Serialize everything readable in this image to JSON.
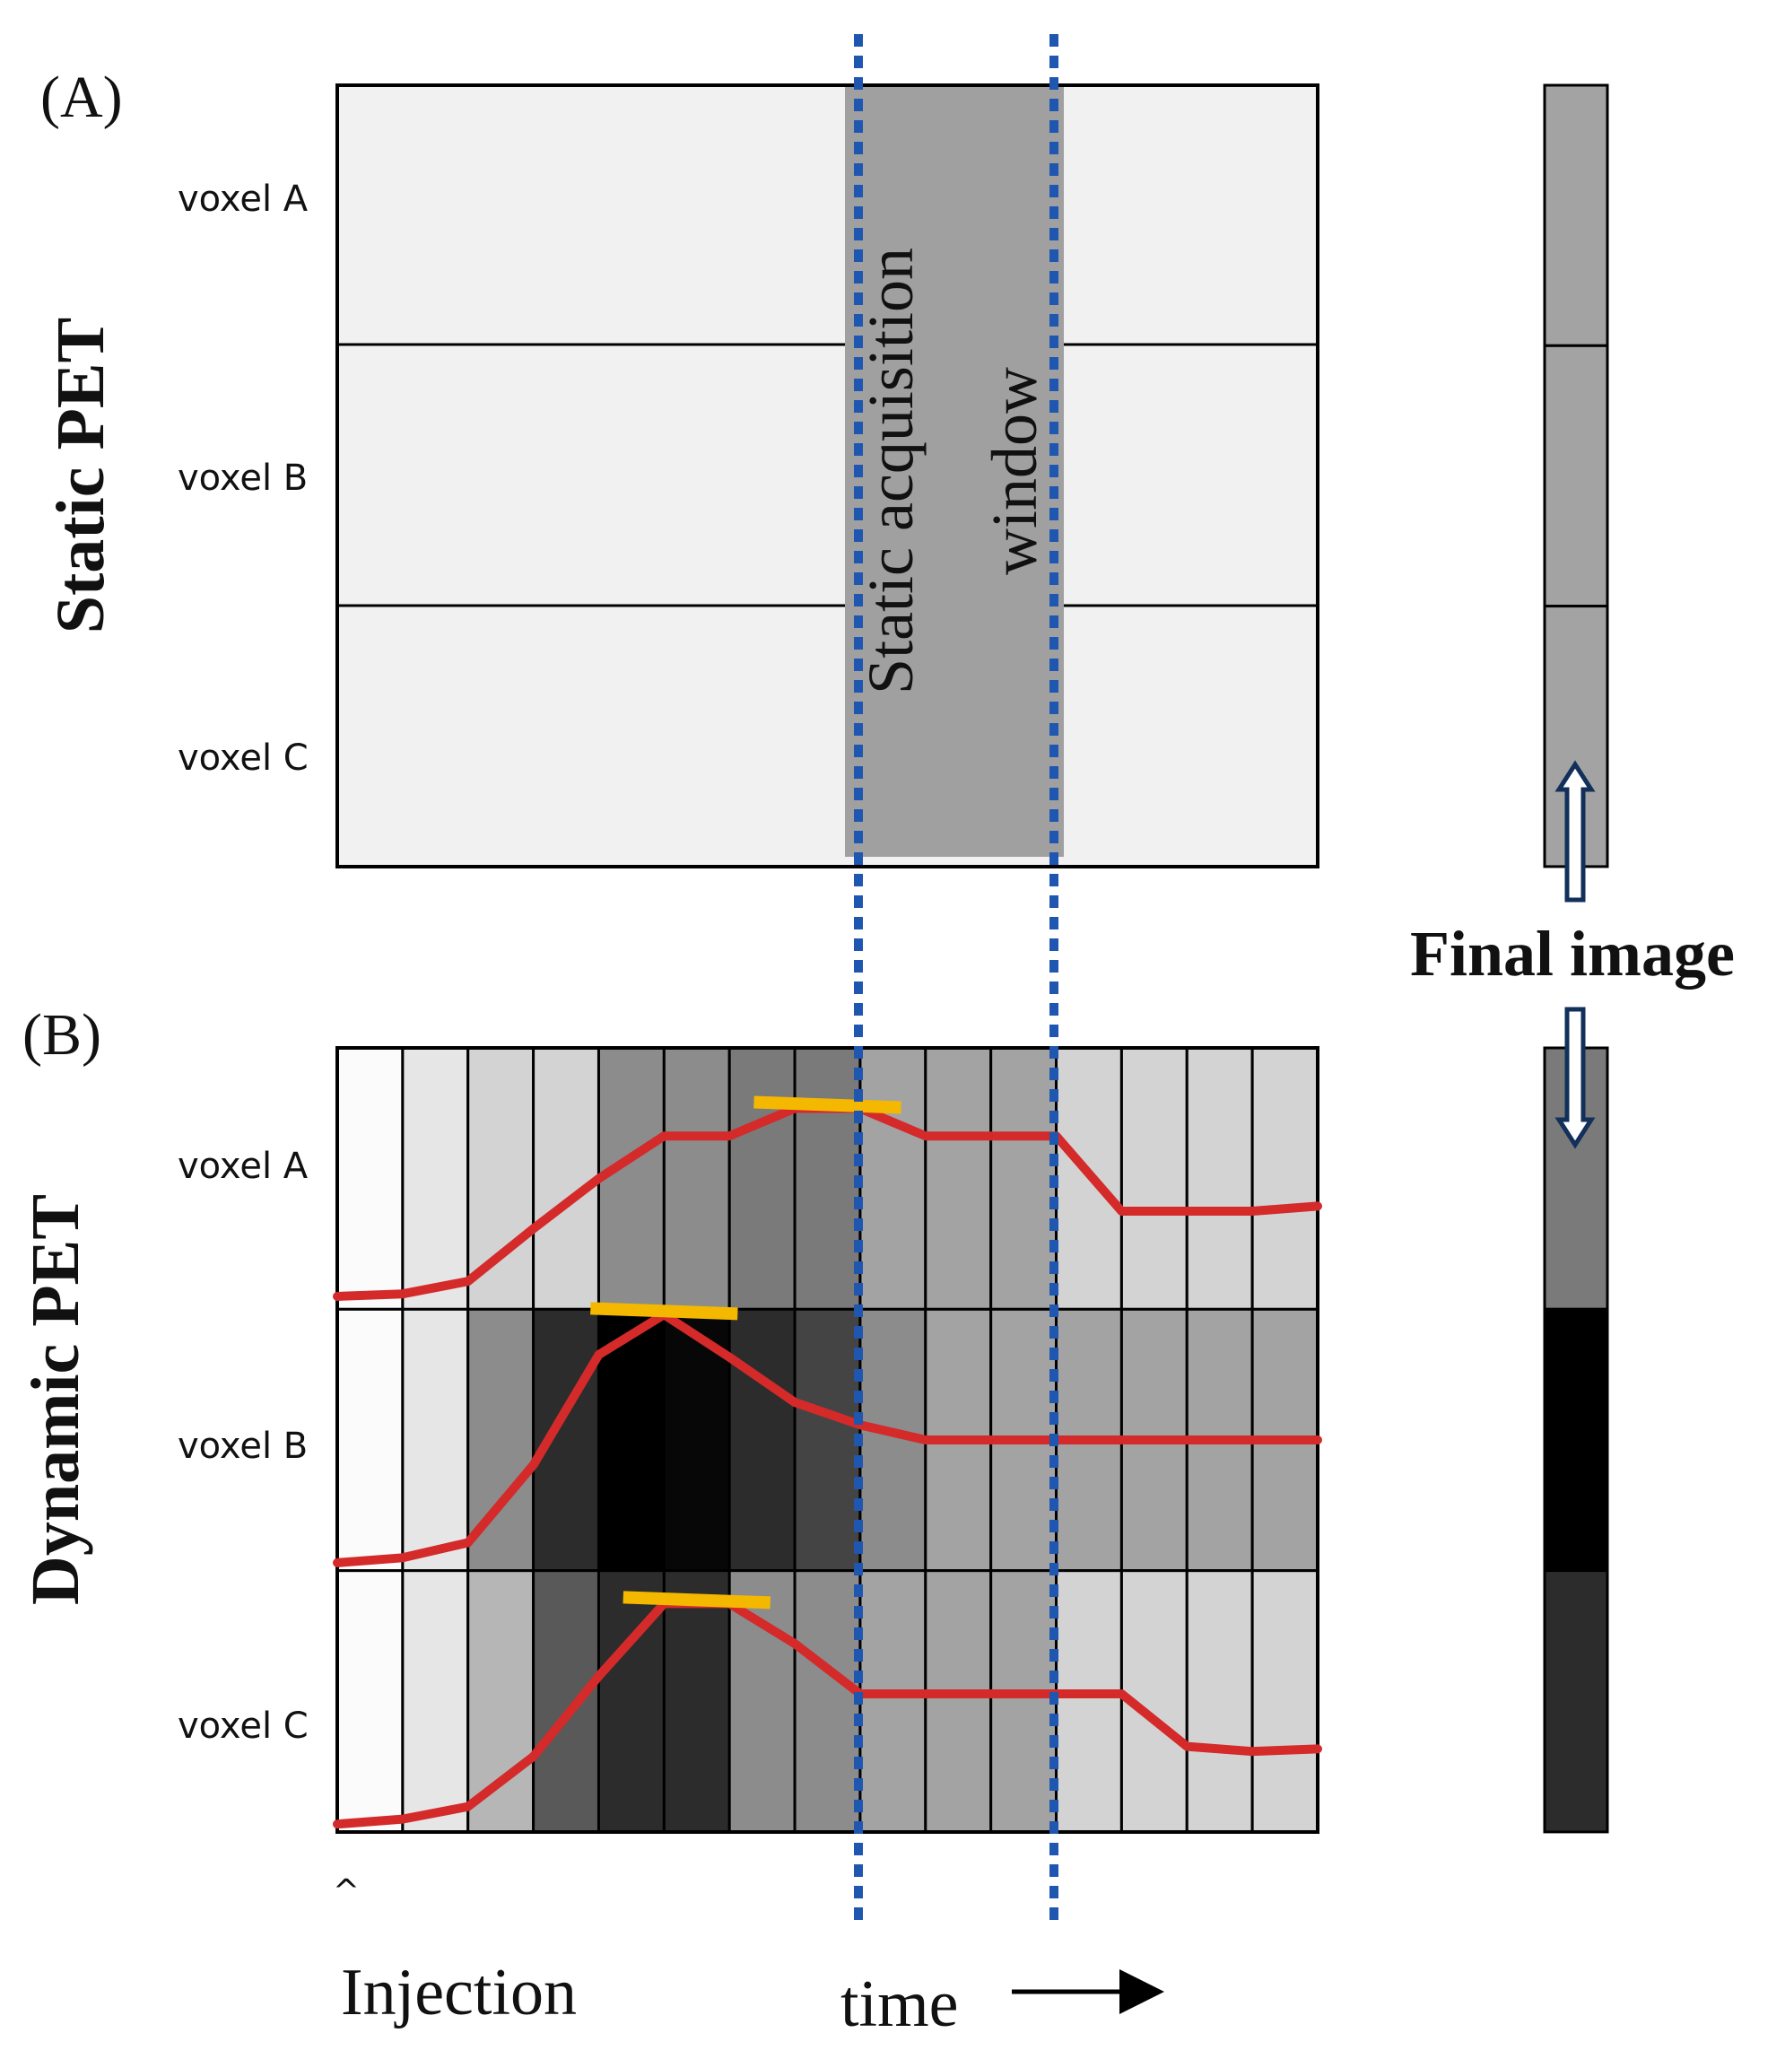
{
  "panel_a": {
    "label": "(A)",
    "side_title": "Static PET",
    "voxel_labels": [
      "voxel A",
      "voxel B",
      "voxel C"
    ],
    "window_label_line1": "Static acquisition",
    "window_label_line2": "window",
    "final_column_shades": [
      "#a3a3a3",
      "#a3a3a3",
      "#a3a3a3"
    ]
  },
  "panel_b": {
    "label": "(B)",
    "side_title": "Dynamic PET",
    "voxel_labels": [
      "voxel A",
      "voxel B",
      "voxel C"
    ],
    "frame_shades": [
      [
        "#fbfbfb",
        "#e6e6e6",
        "#d3d3d3",
        "#d3d3d3",
        "#8c8c8c",
        "#8c8c8c",
        "#7a7a7a",
        "#7a7a7a",
        "#a3a3a3",
        "#a3a3a3",
        "#a3a3a3",
        "#d3d3d3",
        "#d3d3d3",
        "#d3d3d3",
        "#d3d3d3"
      ],
      [
        "#fbfbfb",
        "#e6e6e6",
        "#8c8c8c",
        "#2c2c2c",
        "#000000",
        "#070707",
        "#2c2c2c",
        "#444444",
        "#8c8c8c",
        "#a3a3a3",
        "#a3a3a3",
        "#a3a3a3",
        "#a3a3a3",
        "#a3a3a3",
        "#a3a3a3"
      ],
      [
        "#fbfbfb",
        "#e6e6e6",
        "#b6b6b6",
        "#595959",
        "#2c2c2c",
        "#2c2c2c",
        "#8c8c8c",
        "#8c8c8c",
        "#a3a3a3",
        "#a3a3a3",
        "#a3a3a3",
        "#d3d3d3",
        "#d3d3d3",
        "#d3d3d3",
        "#d3d3d3"
      ]
    ],
    "final_column_shades": [
      "#7a7a7a",
      "#000000",
      "#2c2c2c"
    ],
    "curve_color": "#d42a2a",
    "peak_marker_color": "#f5b800",
    "curves": [
      [
        0.03,
        0.04,
        0.09,
        0.3,
        0.5,
        0.67,
        0.67,
        0.78,
        0.78,
        0.67,
        0.67,
        0.67,
        0.37,
        0.37,
        0.37,
        0.39
      ],
      [
        0.01,
        0.03,
        0.09,
        0.4,
        0.84,
        1.0,
        0.83,
        0.65,
        0.56,
        0.5,
        0.5,
        0.5,
        0.5,
        0.5,
        0.5,
        0.5
      ],
      [
        0.01,
        0.03,
        0.08,
        0.28,
        0.6,
        0.89,
        0.89,
        0.73,
        0.53,
        0.53,
        0.53,
        0.53,
        0.53,
        0.32,
        0.3,
        0.31
      ]
    ]
  },
  "window_line_color": "#1f56b0",
  "final_image_label": "Final image",
  "injection_caret": "^",
  "injection_label": "Injection",
  "time_label": "time"
}
